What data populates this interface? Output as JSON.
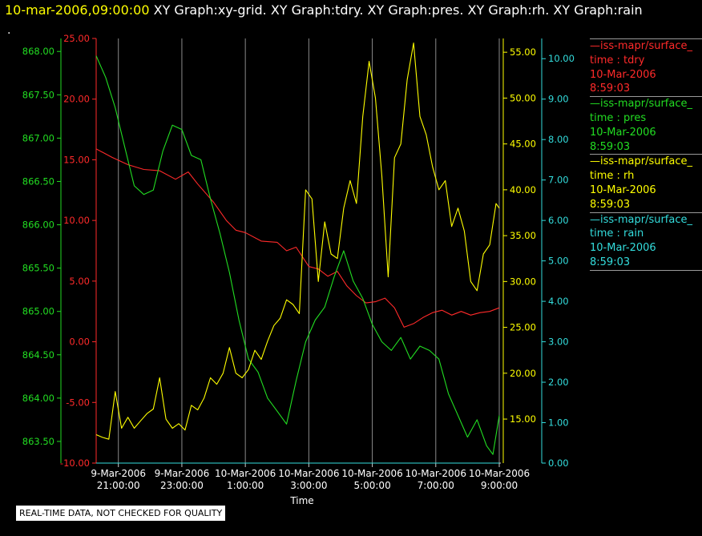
{
  "header": {
    "date": "10-mar-2006,09:00:00",
    "titles": "XY Graph:xy-grid.  XY Graph:tdry.  XY Graph:pres.  XY Graph:rh.  XY Graph:rain"
  },
  "dot": ".",
  "note": "REAL-TIME DATA, NOT CHECKED FOR QUALITY",
  "legend": [
    {
      "title": "iss-mapr/surface_",
      "var": "time : tdry",
      "date": "10-Mar-2006",
      "time": "8:59:03",
      "color": "#ff2a2a"
    },
    {
      "title": "iss-mapr/surface_",
      "var": "time : pres",
      "date": "10-Mar-2006",
      "time": "8:59:03",
      "color": "#22dd22"
    },
    {
      "title": "iss-mapr/surface_",
      "var": "time : rh",
      "date": "10-Mar-2006",
      "time": "8:59:03",
      "color": "#ffff00"
    },
    {
      "title": "iss-mapr/surface_",
      "var": "time : rain",
      "date": "10-Mar-2006",
      "time": "8:59:03",
      "color": "#33dddd"
    }
  ],
  "chart_data": {
    "type": "line",
    "xlabel": "Time",
    "x_ticks": [
      {
        "date": "9-Mar-2006",
        "time": "21:00:00",
        "hour": 0
      },
      {
        "date": "9-Mar-2006",
        "time": "23:00:00",
        "hour": 2
      },
      {
        "date": "10-Mar-2006",
        "time": "1:00:00",
        "hour": 4
      },
      {
        "date": "10-Mar-2006",
        "time": "3:00:00",
        "hour": 6
      },
      {
        "date": "10-Mar-2006",
        "time": "5:00:00",
        "hour": 8
      },
      {
        "date": "10-Mar-2006",
        "time": "7:00:00",
        "hour": 10
      },
      {
        "date": "10-Mar-2006",
        "time": "9:00:00",
        "hour": 12
      }
    ],
    "xlim_hours_since_start": [
      -0.7,
      12.0
    ],
    "grid": "vertical",
    "axes": [
      {
        "name": "pres",
        "side": "left-outer",
        "color": "#22dd22",
        "min": 863.25,
        "max": 868.15,
        "ticks": [
          "863.50",
          "864.00",
          "864.50",
          "865.00",
          "865.50",
          "866.00",
          "866.50",
          "867.00",
          "867.50",
          "868.00"
        ]
      },
      {
        "name": "tdry",
        "side": "left-inner",
        "color": "#ff2a2a",
        "min": -10,
        "max": 25,
        "ticks": [
          "-10.00",
          "-5.00",
          "0.00",
          "5.00",
          "10.00",
          "15.00",
          "20.00",
          "25.00"
        ]
      },
      {
        "name": "rh",
        "side": "right-inner",
        "color": "#ffff00",
        "min": 10.2,
        "max": 56.5,
        "ticks": [
          "15.00",
          "20.00",
          "25.00",
          "30.00",
          "35.00",
          "40.00",
          "45.00",
          "50.00",
          "55.00"
        ]
      },
      {
        "name": "rain",
        "side": "right-outer",
        "color": "#33dddd",
        "min": 0,
        "max": 10.5,
        "ticks": [
          "0.00",
          "1.00",
          "2.00",
          "3.00",
          "4.00",
          "5.00",
          "6.00",
          "7.00",
          "8.00",
          "9.00",
          "10.00"
        ]
      }
    ],
    "series": [
      {
        "name": "tdry",
        "axis": "tdry",
        "color": "#ff2a2a",
        "x": [
          -0.7,
          -0.2,
          0.3,
          0.8,
          1.3,
          1.8,
          2.2,
          2.5,
          2.8,
          3.0,
          3.4,
          3.7,
          4.0,
          4.5,
          5.0,
          5.3,
          5.6,
          6.0,
          6.3,
          6.6,
          6.9,
          7.2,
          7.5,
          7.8,
          8.1,
          8.4,
          8.7,
          9.0,
          9.3,
          9.6,
          9.9,
          10.2,
          10.5,
          10.8,
          11.1,
          11.4,
          11.7,
          12.0
        ],
        "values": [
          15.9,
          15.2,
          14.6,
          14.2,
          14.1,
          13.4,
          14.0,
          13.0,
          12.1,
          11.5,
          10.0,
          9.2,
          9.0,
          8.3,
          8.2,
          7.5,
          7.8,
          6.2,
          6.0,
          5.4,
          5.8,
          4.6,
          3.8,
          3.2,
          3.3,
          3.6,
          2.8,
          1.2,
          1.5,
          2.0,
          2.4,
          2.6,
          2.2,
          2.5,
          2.2,
          2.4,
          2.5,
          2.8
        ]
      },
      {
        "name": "pres",
        "axis": "pres",
        "color": "#22dd22",
        "x": [
          -0.7,
          -0.4,
          -0.1,
          0.2,
          0.5,
          0.8,
          1.1,
          1.4,
          1.7,
          2.0,
          2.3,
          2.6,
          2.9,
          3.2,
          3.5,
          3.8,
          4.1,
          4.4,
          4.7,
          5.0,
          5.3,
          5.6,
          5.9,
          6.2,
          6.5,
          6.8,
          7.1,
          7.4,
          7.7,
          8.0,
          8.3,
          8.6,
          8.9,
          9.2,
          9.5,
          9.8,
          10.1,
          10.4,
          10.7,
          11.0,
          11.3,
          11.6,
          11.8,
          12.0
        ],
        "values": [
          867.95,
          867.7,
          867.35,
          866.9,
          866.45,
          866.35,
          866.4,
          866.85,
          867.15,
          867.1,
          866.8,
          866.75,
          866.3,
          865.9,
          865.45,
          864.9,
          864.45,
          864.3,
          864.0,
          863.85,
          863.7,
          864.2,
          864.65,
          864.9,
          865.05,
          865.4,
          865.7,
          865.35,
          865.15,
          864.85,
          864.65,
          864.55,
          864.7,
          864.45,
          864.6,
          864.55,
          864.45,
          864.05,
          863.8,
          863.55,
          863.75,
          863.45,
          863.35,
          863.8
        ]
      },
      {
        "name": "rh",
        "axis": "rh",
        "color": "#ffff00",
        "x": [
          -0.7,
          -0.5,
          -0.3,
          -0.1,
          0.1,
          0.3,
          0.5,
          0.7,
          0.9,
          1.1,
          1.3,
          1.5,
          1.7,
          1.9,
          2.1,
          2.3,
          2.5,
          2.7,
          2.9,
          3.1,
          3.3,
          3.5,
          3.7,
          3.9,
          4.1,
          4.3,
          4.5,
          4.7,
          4.9,
          5.1,
          5.3,
          5.5,
          5.7,
          5.9,
          6.1,
          6.3,
          6.5,
          6.7,
          6.9,
          7.1,
          7.3,
          7.5,
          7.7,
          7.9,
          8.1,
          8.3,
          8.5,
          8.7,
          8.9,
          9.1,
          9.3,
          9.5,
          9.7,
          9.9,
          10.1,
          10.3,
          10.5,
          10.7,
          10.9,
          11.1,
          11.3,
          11.5,
          11.7,
          11.9,
          12.0
        ],
        "values": [
          13.3,
          13.0,
          12.8,
          18.0,
          14.0,
          15.2,
          14.0,
          14.8,
          15.6,
          16.1,
          19.5,
          15.0,
          14.0,
          14.5,
          13.8,
          16.5,
          16.0,
          17.3,
          19.5,
          18.8,
          20.0,
          22.8,
          20.0,
          19.5,
          20.4,
          22.5,
          21.5,
          23.5,
          25.2,
          26.0,
          28.0,
          27.5,
          26.5,
          40.0,
          39.0,
          30.0,
          36.5,
          33.0,
          32.5,
          38.0,
          41.0,
          38.5,
          48.0,
          54.0,
          50.0,
          41.5,
          30.5,
          43.5,
          45.0,
          52.0,
          56.0,
          48.0,
          46.0,
          42.5,
          40.0,
          41.0,
          36.0,
          38.0,
          35.5,
          30.0,
          29.0,
          33.0,
          34.0,
          38.5,
          38.0
        ]
      },
      {
        "name": "rain",
        "axis": "rain",
        "color": "#33dddd",
        "x": [
          -0.7,
          12.0
        ],
        "values": [
          0,
          0
        ]
      }
    ]
  }
}
